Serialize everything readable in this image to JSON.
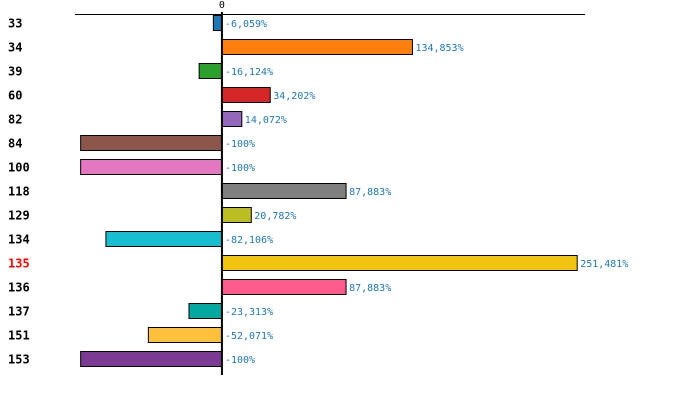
{
  "chart_data": {
    "type": "bar",
    "orientation": "horizontal",
    "categories": [
      "33",
      "34",
      "39",
      "60",
      "82",
      "84",
      "100",
      "118",
      "129",
      "134",
      "135",
      "136",
      "137",
      "151",
      "153"
    ],
    "values": [
      -6.059,
      134.853,
      -16.124,
      34.202,
      14.072,
      -100,
      -100,
      87.883,
      20.782,
      -82.106,
      251.481,
      87.883,
      -23.313,
      -52.071,
      -100
    ],
    "value_labels": [
      "-6,059%",
      "134,853%",
      "-16,124%",
      "34,202%",
      "14,072%",
      "-100%",
      "-100%",
      "87,883%",
      "20,782%",
      "-82,106%",
      "251,481%",
      "87,883%",
      "-23,313%",
      "-52,071%",
      "-100%"
    ],
    "colors": [
      "#1f77b4",
      "#ff7f0e",
      "#2ca02c",
      "#d62728",
      "#9467bd",
      "#8c564b",
      "#e377c2",
      "#7f7f7f",
      "#bcbd22",
      "#17becf",
      "#f1c40f",
      "#ff5b8f",
      "#00aaa0",
      "#ffc13b",
      "#7b3b94"
    ],
    "highlight_category": "135",
    "highlight_color": "#ff0000",
    "value_label_color": "#1f77b4",
    "x_ticks": [
      "0"
    ],
    "xlim": [
      -104,
      257
    ],
    "grid": false,
    "legend": "none",
    "title": "",
    "xlabel": "",
    "ylabel": ""
  }
}
